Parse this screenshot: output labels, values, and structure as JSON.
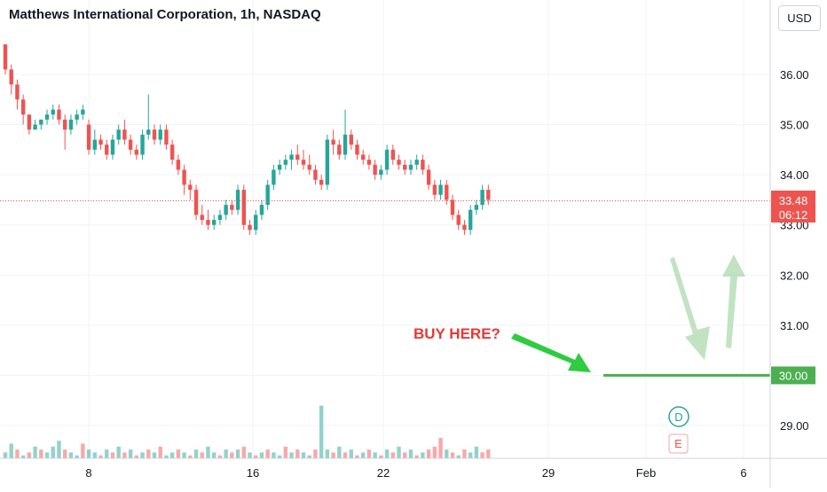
{
  "header": {
    "title": "Matthews International Corporation, 1h, NASDAQ",
    "currency_button": "USD"
  },
  "badges": {
    "current_price": "33.48",
    "countdown": "06:12",
    "level_label": "30.00"
  },
  "annotation": {
    "text": "BUY HERE?"
  },
  "event_markers": {
    "dividend": "D",
    "earnings": "E"
  },
  "colors": {
    "up": "#26a69a",
    "down": "#ef5350",
    "accent_green": "#4caf50",
    "annotation_red": "#e53935"
  },
  "chart_data": {
    "type": "candlestick",
    "x_tick_labels": [
      "8",
      "16",
      "22",
      "29",
      "Feb",
      "6"
    ],
    "y_tick_labels": [
      "29.00",
      "30.00",
      "31.00",
      "32.00",
      "33.00",
      "34.00",
      "35.00",
      "36.00"
    ],
    "ylim": [
      28.6,
      37.2
    ],
    "current_price": 33.48,
    "horizontal_level": 30.0,
    "candles": [
      [
        36.6,
        36.6,
        36.0,
        36.1
      ],
      [
        36.1,
        36.2,
        35.6,
        35.8
      ],
      [
        35.8,
        35.9,
        35.3,
        35.5
      ],
      [
        35.5,
        35.6,
        35.0,
        35.2
      ],
      [
        35.2,
        35.2,
        34.8,
        34.9
      ],
      [
        34.9,
        35.1,
        34.9,
        35.0
      ],
      [
        35.0,
        35.1,
        34.9,
        35.1
      ],
      [
        35.1,
        35.3,
        35.0,
        35.2
      ],
      [
        35.2,
        35.4,
        35.1,
        35.3
      ],
      [
        35.3,
        35.4,
        35.0,
        35.1
      ],
      [
        35.1,
        35.2,
        34.5,
        34.9
      ],
      [
        34.9,
        35.2,
        34.8,
        35.1
      ],
      [
        35.1,
        35.3,
        35.0,
        35.2
      ],
      [
        35.2,
        35.4,
        35.1,
        35.3
      ],
      [
        35.0,
        35.1,
        34.4,
        34.5
      ],
      [
        34.5,
        34.9,
        34.4,
        34.7
      ],
      [
        34.7,
        34.8,
        34.5,
        34.6
      ],
      [
        34.6,
        34.7,
        34.3,
        34.4
      ],
      [
        34.4,
        34.8,
        34.3,
        34.7
      ],
      [
        34.7,
        35.0,
        34.6,
        34.9
      ],
      [
        34.9,
        35.1,
        34.6,
        34.7
      ],
      [
        34.7,
        34.8,
        34.4,
        34.5
      ],
      [
        34.5,
        34.6,
        34.3,
        34.4
      ],
      [
        34.4,
        34.9,
        34.3,
        34.8
      ],
      [
        34.8,
        35.6,
        34.7,
        34.9
      ],
      [
        34.9,
        35.0,
        34.6,
        34.7
      ],
      [
        34.7,
        35.0,
        34.6,
        34.9
      ],
      [
        34.9,
        35.0,
        34.5,
        34.6
      ],
      [
        34.6,
        34.7,
        34.2,
        34.3
      ],
      [
        34.3,
        34.4,
        34.0,
        34.1
      ],
      [
        34.1,
        34.2,
        33.6,
        33.8
      ],
      [
        33.8,
        33.9,
        33.5,
        33.7
      ],
      [
        33.7,
        33.8,
        33.1,
        33.2
      ],
      [
        33.2,
        33.4,
        33.0,
        33.1
      ],
      [
        33.1,
        33.3,
        32.9,
        33.0
      ],
      [
        33.0,
        33.2,
        32.9,
        33.1
      ],
      [
        33.1,
        33.3,
        33.0,
        33.2
      ],
      [
        33.2,
        33.5,
        33.1,
        33.4
      ],
      [
        33.4,
        33.5,
        33.2,
        33.3
      ],
      [
        33.3,
        33.8,
        33.2,
        33.7
      ],
      [
        33.7,
        33.8,
        32.9,
        33.0
      ],
      [
        33.0,
        33.1,
        32.8,
        32.9
      ],
      [
        32.9,
        33.3,
        32.8,
        33.2
      ],
      [
        33.2,
        33.5,
        33.1,
        33.4
      ],
      [
        33.4,
        33.9,
        33.3,
        33.8
      ],
      [
        33.8,
        34.2,
        33.7,
        34.1
      ],
      [
        34.1,
        34.3,
        34.0,
        34.2
      ],
      [
        34.2,
        34.4,
        34.1,
        34.3
      ],
      [
        34.3,
        34.5,
        34.1,
        34.4
      ],
      [
        34.4,
        34.6,
        34.2,
        34.3
      ],
      [
        34.3,
        34.5,
        34.1,
        34.2
      ],
      [
        34.2,
        34.4,
        34.0,
        34.1
      ],
      [
        34.1,
        34.2,
        33.8,
        33.9
      ],
      [
        33.9,
        34.0,
        33.7,
        33.8
      ],
      [
        33.8,
        34.8,
        33.7,
        34.7
      ],
      [
        34.7,
        34.9,
        34.4,
        34.6
      ],
      [
        34.6,
        34.7,
        34.3,
        34.4
      ],
      [
        34.4,
        35.3,
        34.3,
        34.8
      ],
      [
        34.8,
        34.9,
        34.5,
        34.6
      ],
      [
        34.6,
        34.7,
        34.3,
        34.4
      ],
      [
        34.4,
        34.5,
        34.2,
        34.3
      ],
      [
        34.3,
        34.4,
        34.1,
        34.2
      ],
      [
        34.2,
        34.3,
        33.9,
        34.0
      ],
      [
        34.0,
        34.2,
        33.9,
        34.1
      ],
      [
        34.1,
        34.6,
        34.0,
        34.5
      ],
      [
        34.5,
        34.6,
        34.2,
        34.3
      ],
      [
        34.3,
        34.4,
        34.1,
        34.2
      ],
      [
        34.2,
        34.3,
        34.0,
        34.1
      ],
      [
        34.1,
        34.3,
        34.0,
        34.2
      ],
      [
        34.2,
        34.4,
        34.1,
        34.3
      ],
      [
        34.3,
        34.4,
        34.0,
        34.1
      ],
      [
        34.1,
        34.2,
        33.7,
        33.8
      ],
      [
        33.8,
        33.9,
        33.5,
        33.6
      ],
      [
        33.6,
        33.9,
        33.5,
        33.8
      ],
      [
        33.8,
        33.9,
        33.4,
        33.5
      ],
      [
        33.5,
        33.6,
        33.1,
        33.2
      ],
      [
        33.2,
        33.3,
        32.9,
        33.0
      ],
      [
        33.0,
        33.1,
        32.8,
        32.9
      ],
      [
        32.9,
        33.4,
        32.8,
        33.3
      ],
      [
        33.3,
        33.5,
        33.2,
        33.4
      ],
      [
        33.4,
        33.8,
        33.3,
        33.7
      ],
      [
        33.7,
        33.8,
        33.4,
        33.5
      ]
    ],
    "volumes": [
      [
        2,
        1
      ],
      [
        5,
        1
      ],
      [
        3,
        0
      ],
      [
        1,
        1
      ],
      [
        2,
        0
      ],
      [
        4,
        1
      ],
      [
        3,
        0
      ],
      [
        2,
        1
      ],
      [
        4,
        1
      ],
      [
        6,
        1
      ],
      [
        3,
        0
      ],
      [
        2,
        1
      ],
      [
        1,
        1
      ],
      [
        5,
        0
      ],
      [
        3,
        1
      ],
      [
        2,
        1
      ],
      [
        1,
        0
      ],
      [
        3,
        1
      ],
      [
        2,
        0
      ],
      [
        4,
        1
      ],
      [
        2,
        0
      ],
      [
        3,
        1
      ],
      [
        1,
        0
      ],
      [
        2,
        1
      ],
      [
        3,
        0
      ],
      [
        2,
        1
      ],
      [
        4,
        0
      ],
      [
        1,
        1
      ],
      [
        2,
        1
      ],
      [
        3,
        0
      ],
      [
        2,
        1
      ],
      [
        1,
        0
      ],
      [
        3,
        1
      ],
      [
        2,
        0
      ],
      [
        4,
        1
      ],
      [
        2,
        1
      ],
      [
        1,
        0
      ],
      [
        3,
        1
      ],
      [
        2,
        0
      ],
      [
        3,
        1
      ],
      [
        4,
        0
      ],
      [
        2,
        1
      ],
      [
        1,
        0
      ],
      [
        2,
        1
      ],
      [
        3,
        0
      ],
      [
        2,
        1
      ],
      [
        1,
        1
      ],
      [
        4,
        0
      ],
      [
        2,
        1
      ],
      [
        3,
        0
      ],
      [
        2,
        1
      ],
      [
        1,
        1
      ],
      [
        3,
        0
      ],
      [
        18,
        1
      ],
      [
        3,
        1
      ],
      [
        2,
        0
      ],
      [
        4,
        1
      ],
      [
        2,
        0
      ],
      [
        3,
        1
      ],
      [
        1,
        0
      ],
      [
        2,
        1
      ],
      [
        3,
        0
      ],
      [
        2,
        1
      ],
      [
        1,
        0
      ],
      [
        3,
        1
      ],
      [
        2,
        0
      ],
      [
        4,
        1
      ],
      [
        2,
        0
      ],
      [
        3,
        1
      ],
      [
        1,
        0
      ],
      [
        2,
        1
      ],
      [
        3,
        0
      ],
      [
        4,
        0
      ],
      [
        7,
        0
      ],
      [
        3,
        1
      ],
      [
        2,
        0
      ],
      [
        1,
        1
      ],
      [
        3,
        0
      ],
      [
        2,
        1
      ],
      [
        4,
        1
      ],
      [
        2,
        0
      ],
      [
        3,
        0
      ]
    ]
  }
}
